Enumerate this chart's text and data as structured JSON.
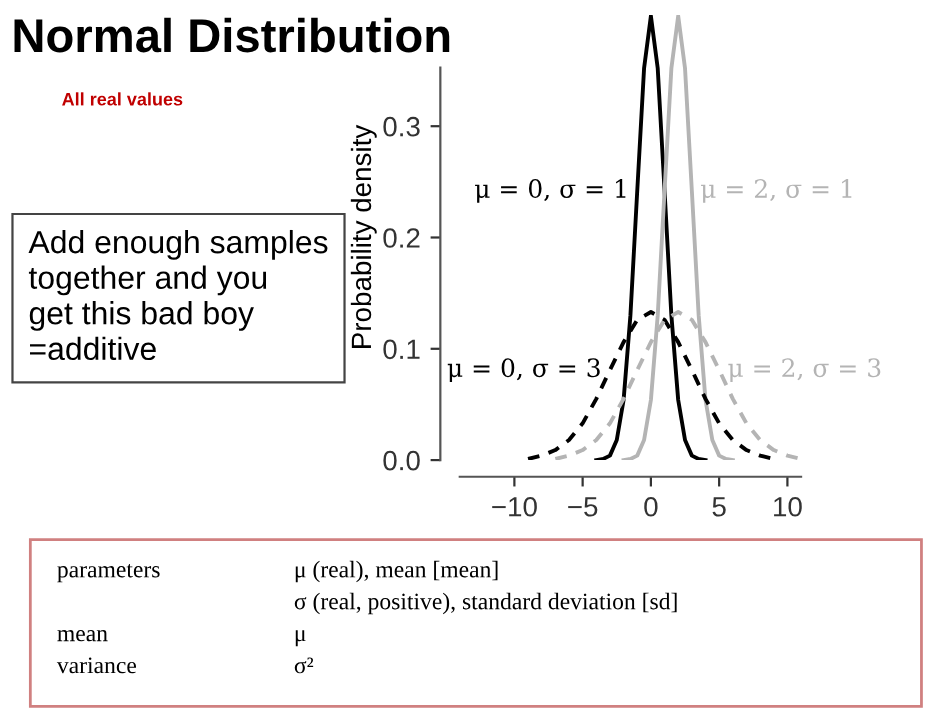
{
  "chart_data": {
    "type": "line",
    "title": "Normal Distribution",
    "subtitle": "All real values",
    "ylabel": "Probability density",
    "xlim": [
      -14,
      11
    ],
    "ylim": [
      0,
      0.4
    ],
    "xticks": [
      {
        "value": -10,
        "label": "−10"
      },
      {
        "value": -5,
        "label": "−5"
      },
      0,
      5,
      10
    ],
    "yticks": [
      {
        "value": 0,
        "label": "0.0"
      },
      0.1,
      0.2,
      0.3
    ],
    "grid": false,
    "marker": "none",
    "series": [
      {
        "name": "μ = 0, σ = 1",
        "color": "#000000",
        "line_style": "solid",
        "x": [
          -4,
          -3.5,
          -3,
          -2.5,
          -2,
          -1.5,
          -1,
          -0.5,
          0,
          0.5,
          1,
          1.5,
          2,
          2.5,
          3,
          3.5,
          4
        ],
        "values": [
          0.0,
          0.001,
          0.004,
          0.018,
          0.054,
          0.13,
          0.242,
          0.352,
          0.399,
          0.352,
          0.242,
          0.13,
          0.054,
          0.018,
          0.004,
          0.001,
          0.0
        ]
      },
      {
        "name": "μ = 2, σ = 1",
        "color": "#b4b4b4",
        "line_style": "solid",
        "x": [
          -2,
          -1.5,
          -1,
          -0.5,
          0,
          0.5,
          1,
          1.5,
          2,
          2.5,
          3,
          3.5,
          4,
          4.5,
          5,
          5.5,
          6
        ],
        "values": [
          0.0,
          0.001,
          0.004,
          0.018,
          0.054,
          0.13,
          0.242,
          0.352,
          0.399,
          0.352,
          0.242,
          0.13,
          0.054,
          0.018,
          0.004,
          0.001,
          0.0
        ]
      },
      {
        "name": "μ = 0, σ = 3",
        "color": "#000000",
        "line_style": "dashed",
        "x": [
          -9,
          -8,
          -7,
          -6,
          -5,
          -4,
          -3,
          -2,
          -1,
          0,
          1,
          2,
          3,
          4,
          5,
          6,
          7,
          8,
          9
        ],
        "values": [
          0.001,
          0.004,
          0.009,
          0.018,
          0.033,
          0.055,
          0.081,
          0.106,
          0.126,
          0.133,
          0.126,
          0.106,
          0.081,
          0.055,
          0.033,
          0.018,
          0.009,
          0.004,
          0.001
        ]
      },
      {
        "name": "μ = 2, σ = 3",
        "color": "#b4b4b4",
        "line_style": "dashed",
        "x": [
          -7,
          -6,
          -5,
          -4,
          -3,
          -2,
          -1,
          0,
          1,
          2,
          3,
          4,
          5,
          6,
          7,
          8,
          9,
          10,
          11
        ],
        "values": [
          0.001,
          0.004,
          0.009,
          0.018,
          0.033,
          0.055,
          0.081,
          0.106,
          0.126,
          0.133,
          0.126,
          0.106,
          0.081,
          0.055,
          0.033,
          0.018,
          0.009,
          0.004,
          0.001
        ]
      }
    ],
    "annotations": [
      "Add enough samples\ntogether and you\nget this bad boy\n=additive",
      "parameters",
      "μ (real), mean [mean]",
      "σ (real, positive), standard deviation [sd]",
      "mean",
      "μ",
      "variance",
      "σ²"
    ]
  }
}
